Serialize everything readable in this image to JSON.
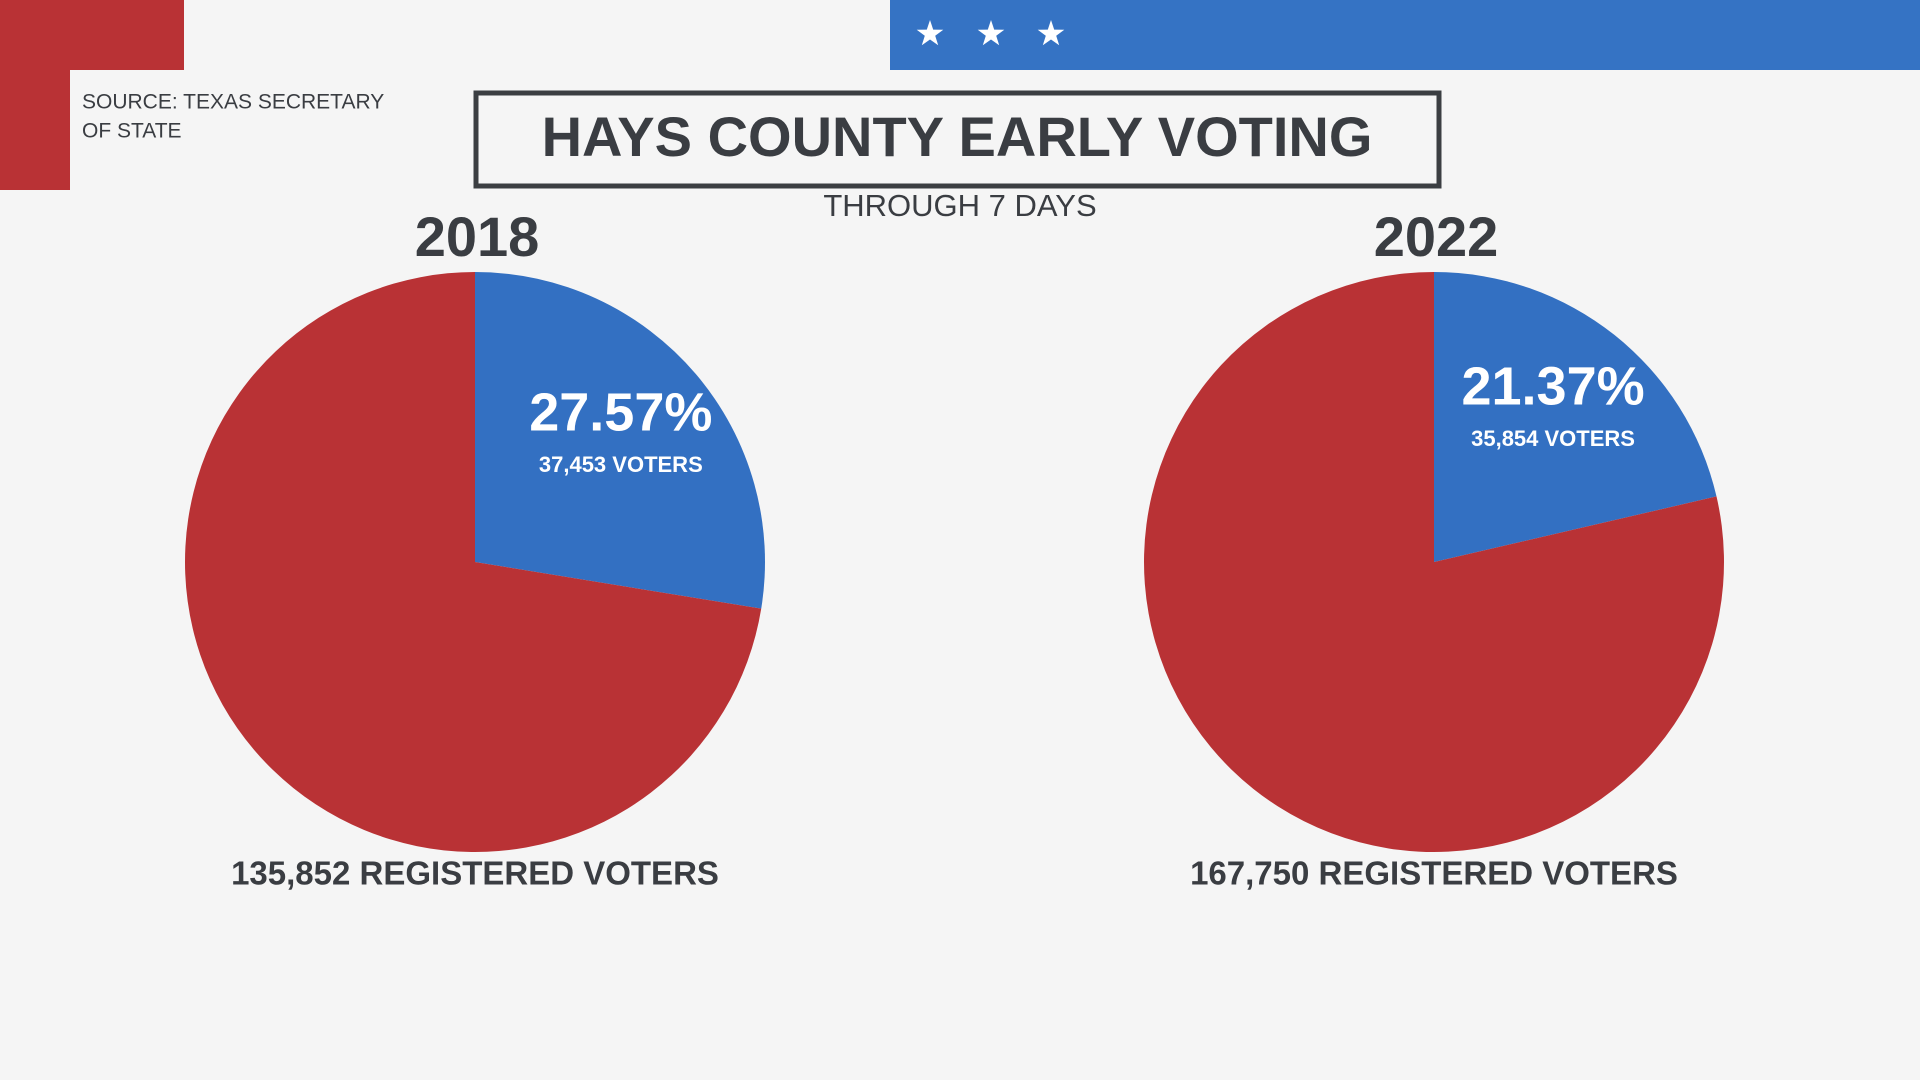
{
  "source": [
    "SOURCE: TEXAS SECRETARY",
    "OF STATE"
  ],
  "title": "HAYS COUNTY EARLY VOTING",
  "subtitle": "THROUGH 7 DAYS",
  "chart_data": [
    {
      "type": "pie",
      "title": "2018",
      "values": [
        27.57,
        72.43
      ],
      "value_labels": [
        "27.57%",
        null
      ],
      "annotations": [
        "37,453 VOTERS"
      ],
      "colors": [
        "#3370c2",
        "#b93235"
      ],
      "footer": "135,852 REGISTERED VOTERS"
    },
    {
      "type": "pie",
      "title": "2022",
      "values": [
        21.37,
        78.63
      ],
      "value_labels": [
        "21.37%",
        null
      ],
      "annotations": [
        "35,854 VOTERS"
      ],
      "colors": [
        "#3370c2",
        "#b93235"
      ],
      "footer": "167,750 REGISTERED VOTERS"
    }
  ]
}
